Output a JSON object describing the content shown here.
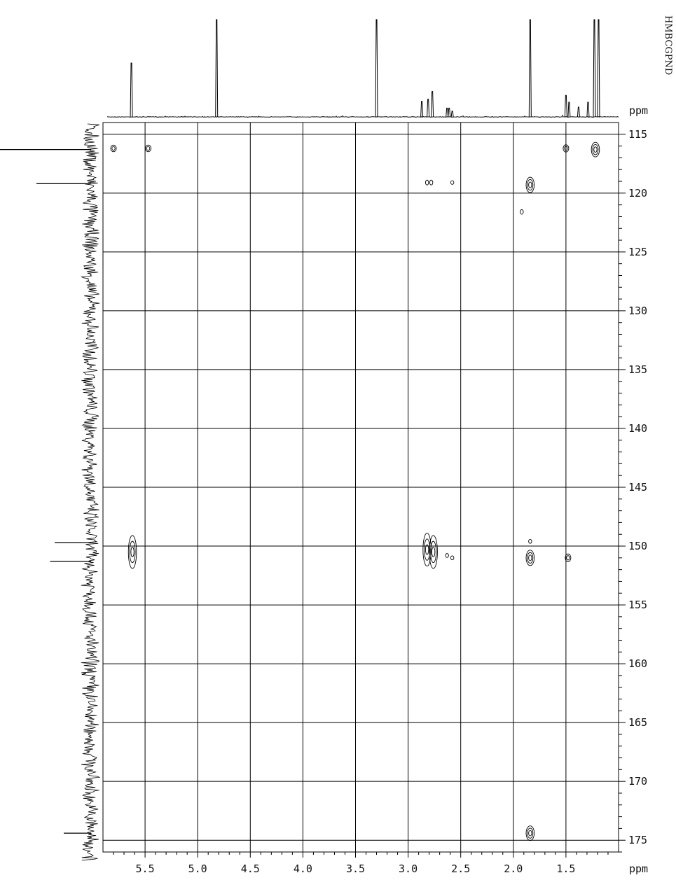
{
  "page": {
    "vertical_label": "HMBCGPND"
  },
  "chart_data": {
    "type": "heatmap",
    "title": "",
    "xlabel": "ppm",
    "ylabel": "ppm",
    "x_axis": {
      "unit_label": "ppm",
      "direction": "decreasing",
      "range": [
        5.9,
        1.0
      ],
      "ticks": [
        5.5,
        5.0,
        4.5,
        4.0,
        3.5,
        3.0,
        2.5,
        2.0,
        1.5
      ],
      "tick_labels": [
        "5.5",
        "5.0",
        "4.5",
        "4.0",
        "3.5",
        "3.0",
        "2.5",
        "2.0",
        "1.5"
      ]
    },
    "y_axis": {
      "unit_label": "ppm",
      "direction": "increasing-downward",
      "range": [
        114.0,
        176.0
      ],
      "ticks": [
        115,
        120,
        125,
        130,
        135,
        140,
        145,
        150,
        155,
        160,
        165,
        170,
        175
      ],
      "tick_labels": [
        "115",
        "120",
        "125",
        "130",
        "135",
        "140",
        "145",
        "150",
        "155",
        "160",
        "165",
        "170",
        "175"
      ]
    },
    "grid": true,
    "top_projection_peaks": [
      {
        "ppm": 5.63,
        "intensity": 0.55
      },
      {
        "ppm": 4.82,
        "intensity": 1.0
      },
      {
        "ppm": 3.3,
        "intensity": 1.0
      },
      {
        "ppm": 2.87,
        "intensity": 0.16
      },
      {
        "ppm": 2.81,
        "intensity": 0.18
      },
      {
        "ppm": 2.77,
        "intensity": 0.26
      },
      {
        "ppm": 2.63,
        "intensity": 0.09
      },
      {
        "ppm": 2.61,
        "intensity": 0.09
      },
      {
        "ppm": 2.58,
        "intensity": 0.06
      },
      {
        "ppm": 1.84,
        "intensity": 1.0
      },
      {
        "ppm": 1.5,
        "intensity": 0.22
      },
      {
        "ppm": 1.47,
        "intensity": 0.15
      },
      {
        "ppm": 1.38,
        "intensity": 0.1
      },
      {
        "ppm": 1.29,
        "intensity": 0.15
      },
      {
        "ppm": 1.23,
        "intensity": 1.0
      },
      {
        "ppm": 1.19,
        "intensity": 1.0
      }
    ],
    "left_projection_peaks": [
      {
        "ppm": 116.3,
        "intensity": 1.0
      },
      {
        "ppm": 119.2,
        "intensity": 0.6
      },
      {
        "ppm": 149.7,
        "intensity": 0.4
      },
      {
        "ppm": 151.3,
        "intensity": 0.45
      },
      {
        "ppm": 174.4,
        "intensity": 0.3
      }
    ],
    "cross_peaks": [
      {
        "x": 5.8,
        "y": 116.2,
        "size": 2,
        "elong": 1.2
      },
      {
        "x": 5.47,
        "y": 116.2,
        "size": 2,
        "elong": 1.2
      },
      {
        "x": 1.5,
        "y": 116.2,
        "size": 2,
        "elong": 1.3
      },
      {
        "x": 1.22,
        "y": 116.3,
        "size": 3,
        "elong": 1.8
      },
      {
        "x": 2.82,
        "y": 119.1,
        "size": 1,
        "elong": 1.6
      },
      {
        "x": 2.78,
        "y": 119.1,
        "size": 1,
        "elong": 1.6
      },
      {
        "x": 2.58,
        "y": 119.1,
        "size": 1,
        "elong": 1.2
      },
      {
        "x": 1.84,
        "y": 119.3,
        "size": 3,
        "elong": 1.9
      },
      {
        "x": 1.92,
        "y": 121.6,
        "size": 1,
        "elong": 1.5
      },
      {
        "x": 5.62,
        "y": 150.5,
        "size": 3,
        "elong": 3.2
      },
      {
        "x": 2.82,
        "y": 150.3,
        "size": 3,
        "elong": 3.2
      },
      {
        "x": 2.76,
        "y": 150.5,
        "size": 3,
        "elong": 3.2
      },
      {
        "x": 2.63,
        "y": 150.8,
        "size": 1,
        "elong": 1.3
      },
      {
        "x": 2.58,
        "y": 151.0,
        "size": 1,
        "elong": 1.3
      },
      {
        "x": 1.84,
        "y": 149.6,
        "size": 1,
        "elong": 1.3
      },
      {
        "x": 1.84,
        "y": 151.0,
        "size": 3,
        "elong": 1.9
      },
      {
        "x": 1.48,
        "y": 151.0,
        "size": 2,
        "elong": 1.4
      },
      {
        "x": 1.84,
        "y": 174.4,
        "size": 3,
        "elong": 1.8
      }
    ]
  }
}
